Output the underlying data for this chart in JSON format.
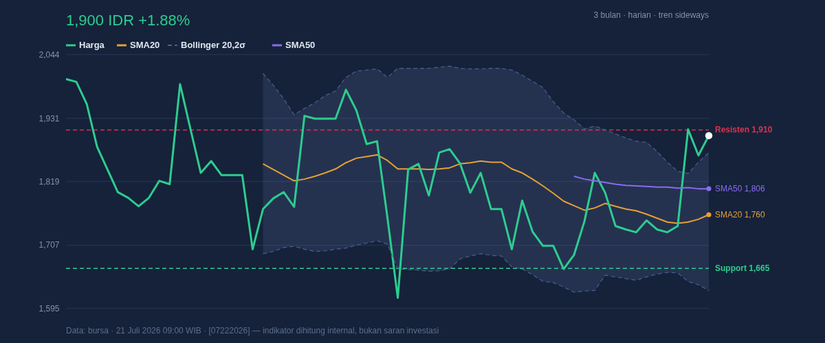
{
  "chart_data": {
    "type": "line",
    "subtitle": "1,900 IDR +1.88%",
    "categories": [
      null,
      null,
      null,
      null,
      null,
      null,
      null,
      null,
      null,
      null,
      null,
      null,
      null,
      null,
      null,
      null,
      null,
      null,
      null,
      null,
      null,
      null,
      null,
      null,
      null,
      null,
      null,
      null,
      null,
      null,
      null,
      null,
      null,
      null,
      null,
      null,
      null,
      null,
      null,
      null,
      null,
      null,
      null,
      null,
      null,
      null,
      null,
      null,
      null,
      null,
      null,
      null,
      null,
      null,
      null,
      null,
      null,
      null,
      null,
      null,
      null,
      null,
      null
    ],
    "series": [
      {
        "name": "Harga",
        "color": "#2ecc8f",
        "values": [
          2000,
          1995,
          1956,
          1880,
          1840,
          1800,
          1790,
          1775,
          1790,
          1820,
          1814,
          1991,
          1912,
          1834,
          1855,
          1830,
          1830,
          1830,
          1699,
          1770,
          1789,
          1800,
          1774,
          1935,
          1930,
          1930,
          1930,
          1981,
          1945,
          1885,
          1890,
          1755,
          1613,
          1840,
          1850,
          1794,
          1870,
          1876,
          1851,
          1799,
          1834,
          1770,
          1770,
          1699,
          1785,
          1730,
          1705,
          1705,
          1664,
          1689,
          1748,
          1834,
          1799,
          1740,
          1734,
          1729,
          1750,
          1734,
          1729,
          1740,
          1911,
          1865,
          1900
        ]
      },
      {
        "name": "SMA20",
        "color": "#e8a032",
        "values": [
          null,
          null,
          null,
          null,
          null,
          null,
          null,
          null,
          null,
          null,
          null,
          null,
          null,
          null,
          null,
          null,
          null,
          null,
          null,
          1850,
          1840,
          1830,
          1820,
          1823,
          1828,
          1834,
          1841,
          1852,
          1860,
          1863,
          1866,
          1856,
          1841,
          1841,
          1841,
          1840,
          1841,
          1843,
          1850,
          1852,
          1855,
          1853,
          1853,
          1841,
          1834,
          1823,
          1811,
          1798,
          1784,
          1776,
          1768,
          1772,
          1780,
          1775,
          1770,
          1767,
          1761,
          1754,
          1747,
          1745,
          1747,
          1752,
          1760
        ],
        "lower": [
          null,
          null,
          null,
          null,
          null,
          null,
          null,
          null,
          null,
          null,
          null,
          null,
          null,
          null,
          null,
          null,
          null,
          null,
          null,
          1691,
          1695,
          1702,
          1704,
          1699,
          1695,
          1696,
          1699,
          1701,
          1706,
          1710,
          1714,
          1708,
          1664,
          1663,
          1662,
          1660,
          1661,
          1664,
          1682,
          1687,
          1691,
          1688,
          1687,
          1668,
          1664,
          1654,
          1642,
          1640,
          1632,
          1623,
          1625,
          1626,
          1653,
          1650,
          1647,
          1644,
          1650,
          1655,
          1658,
          1657,
          1642,
          1636,
          1626
        ],
        "upper": [
          null,
          null,
          null,
          null,
          null,
          null,
          null,
          null,
          null,
          null,
          null,
          null,
          null,
          null,
          null,
          null,
          null,
          null,
          null,
          2010,
          1989,
          1965,
          1937,
          1948,
          1958,
          1971,
          1979,
          2003,
          2014,
          2016,
          2018,
          2003,
          2019,
          2019,
          2019,
          2019,
          2021,
          2023,
          2019,
          2018,
          2018,
          2019,
          2019,
          2016,
          2007,
          1996,
          1985,
          1960,
          1940,
          1928,
          1912,
          1917,
          1910,
          1903,
          1896,
          1890,
          1888,
          1872,
          1853,
          1837,
          1833,
          1853,
          1870
        ]
      },
      {
        "name": "Bollinger 20,2σ",
        "color": "#4b5f8c",
        "line_style": "dashed",
        "values": [
          null,
          null,
          null,
          null,
          null,
          null,
          null,
          null,
          null,
          null,
          null,
          null,
          null,
          null,
          null,
          null,
          null,
          null,
          null,
          2010,
          1989,
          1965,
          1937,
          1948,
          1958,
          1971,
          1979,
          2003,
          2014,
          2016,
          2018,
          2003,
          2019,
          2019,
          2019,
          2019,
          2021,
          2023,
          2019,
          2018,
          2018,
          2019,
          2019,
          2016,
          2007,
          1996,
          1985,
          1960,
          1940,
          1928,
          1912,
          1917,
          1910,
          1903,
          1896,
          1890,
          1888,
          1872,
          1853,
          1837,
          1833,
          1853,
          1870
        ]
      },
      {
        "color": "#4b5f8c",
        "line_style": "dashed",
        "values": [
          null,
          null,
          null,
          null,
          null,
          null,
          null,
          null,
          null,
          null,
          null,
          null,
          null,
          null,
          null,
          null,
          null,
          null,
          null,
          1691,
          1695,
          1702,
          1704,
          1699,
          1695,
          1696,
          1699,
          1701,
          1706,
          1710,
          1714,
          1708,
          1664,
          1663,
          1662,
          1660,
          1661,
          1664,
          1682,
          1687,
          1691,
          1688,
          1687,
          1668,
          1664,
          1654,
          1642,
          1640,
          1632,
          1623,
          1625,
          1626,
          1653,
          1650,
          1647,
          1644,
          1650,
          1655,
          1658,
          1657,
          1642,
          1636,
          1626
        ]
      },
      {
        "name": "SMA50",
        "color": "#8a6cf0",
        "values": [
          null,
          null,
          null,
          null,
          null,
          null,
          null,
          null,
          null,
          null,
          null,
          null,
          null,
          null,
          null,
          null,
          null,
          null,
          null,
          null,
          null,
          null,
          null,
          null,
          null,
          null,
          null,
          null,
          null,
          null,
          null,
          null,
          null,
          null,
          null,
          null,
          null,
          null,
          null,
          null,
          null,
          null,
          null,
          null,
          null,
          null,
          null,
          null,
          null,
          1828,
          1823,
          1820,
          1817,
          1814,
          1812,
          1811,
          1810,
          1809,
          1809,
          1807,
          1808,
          1806,
          1806
        ]
      }
    ],
    "ylim": [
      1595,
      2044
    ],
    "yticks": [
      {
        "value": 1595,
        "label": "1,595"
      },
      {
        "value": 1707,
        "label": "1,707"
      },
      {
        "value": 1819,
        "label": "1,819"
      },
      {
        "value": 1931,
        "label": "1,931"
      },
      {
        "value": 2044,
        "label": "2,044"
      }
    ],
    "grid": "y",
    "legend": "top left",
    "ref_lines": [
      {
        "axis": "y",
        "value": 1910,
        "label": "Resisten 1,910",
        "color": "#e0304a",
        "line_style": "dashed"
      },
      {
        "axis": "y",
        "value": 1665,
        "label": "Support 1,665",
        "color": "#2ecc8f",
        "line_style": "dashed"
      }
    ],
    "annotations": [
      "3 bulan · harian · tren sideways",
      "Data: bursa · 21 Juli 2026 09:00 WIB · [07222026] — indikator dihitung internal, bukan saran investasi",
      "SMA20 1,760",
      "SMA50 1,806"
    ]
  }
}
